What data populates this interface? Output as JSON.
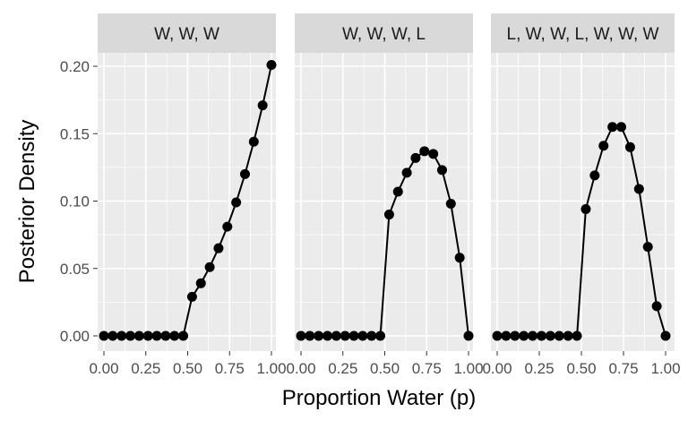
{
  "chart_data": {
    "type": "line",
    "markers": true,
    "xlabel": "Proportion Water (p)",
    "ylabel": "Posterior Density",
    "xlim": [
      0,
      1
    ],
    "ylim": [
      0,
      0.2
    ],
    "x_ticks": [
      "0.00",
      "0.25",
      "0.50",
      "0.75",
      "1.00"
    ],
    "y_ticks": [
      "0.00",
      "0.05",
      "0.10",
      "0.15",
      "0.20"
    ],
    "grid": true,
    "x": [
      0.0,
      0.0526,
      0.1053,
      0.1579,
      0.2105,
      0.2632,
      0.3158,
      0.3684,
      0.4211,
      0.4737,
      0.5263,
      0.5789,
      0.6316,
      0.6842,
      0.7368,
      0.7895,
      0.8421,
      0.8947,
      0.9474,
      1.0
    ],
    "panels": [
      {
        "label": "W, W, W",
        "values": [
          0,
          0,
          0,
          0,
          0,
          0,
          0,
          0,
          0,
          0,
          0.029,
          0.039,
          0.051,
          0.065,
          0.081,
          0.099,
          0.12,
          0.144,
          0.171,
          0.201
        ]
      },
      {
        "label": "W, W, W, L",
        "values": [
          0,
          0,
          0,
          0,
          0,
          0,
          0,
          0,
          0,
          0,
          0.09,
          0.107,
          0.121,
          0.132,
          0.137,
          0.135,
          0.123,
          0.098,
          0.058,
          0
        ]
      },
      {
        "label": "L, W, W, L, W, W, W",
        "values": [
          0,
          0,
          0,
          0,
          0,
          0,
          0,
          0,
          0,
          0,
          0.094,
          0.119,
          0.141,
          0.155,
          0.155,
          0.14,
          0.109,
          0.066,
          0.022,
          0
        ]
      }
    ]
  },
  "colors": {
    "panel_bg": "#ebebeb",
    "strip_bg": "#d9d9d9",
    "grid": "#ffffff",
    "series": "#000000"
  }
}
